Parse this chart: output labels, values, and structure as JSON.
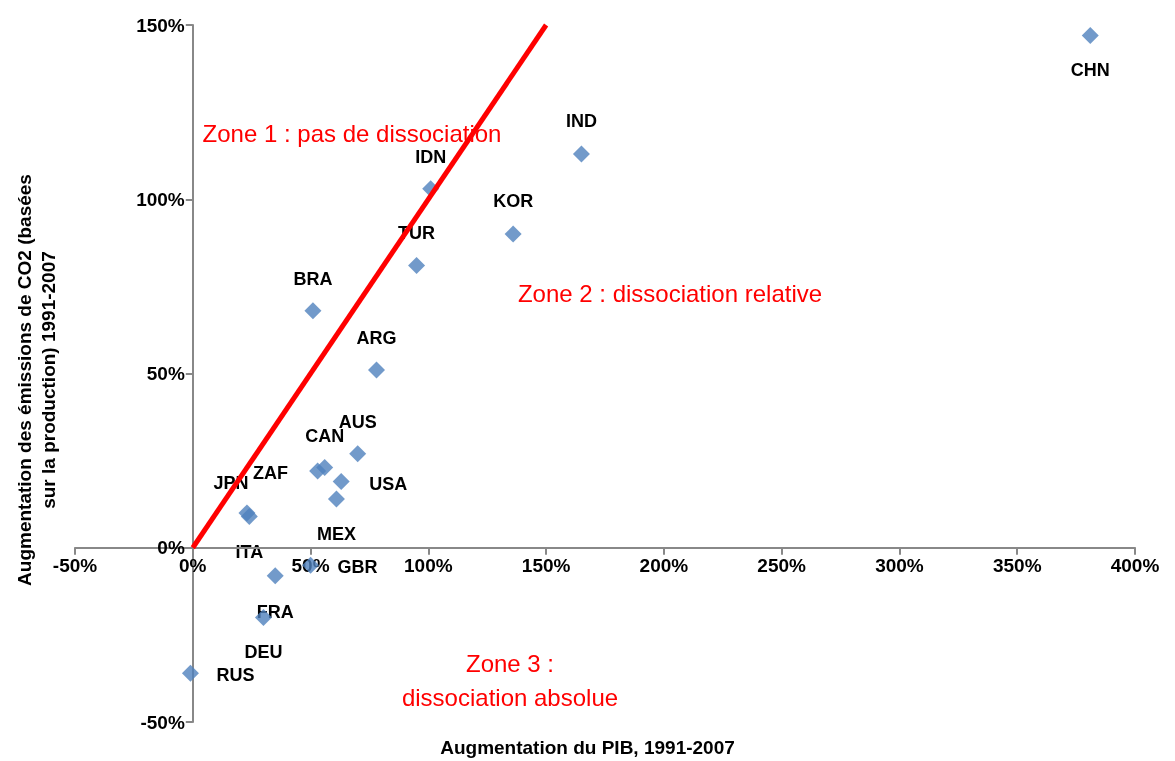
{
  "chart_data": {
    "type": "scatter",
    "xlabel": "Augmentation du PIB, 1991-2007",
    "ylabel": "Augmentation des émissions de CO2 (basées\nsur la production) 1991-2007",
    "series": [
      {
        "color": "#4f81bd",
        "marker": "diamond",
        "x": [
          381,
          165,
          101,
          136,
          95,
          51,
          78,
          70,
          56,
          53,
          63,
          61,
          23,
          24,
          50,
          35,
          30,
          -1
        ],
        "values": [
          147,
          113,
          103,
          90,
          81,
          68,
          51,
          27,
          23,
          22,
          19,
          14,
          10,
          9,
          -5,
          -8,
          -20,
          -36
        ]
      },
      {
        "type": "line",
        "color": "#ff0000",
        "marker": "none",
        "x": [
          0,
          150
        ],
        "values": [
          0,
          150
        ]
      }
    ],
    "annotations": [
      {
        "text": "CHN",
        "x": 381,
        "y": 147
      },
      {
        "text": "IND",
        "x": 165,
        "y": 113
      },
      {
        "text": "IDN",
        "x": 101,
        "y": 103
      },
      {
        "text": "KOR",
        "x": 136,
        "y": 90
      },
      {
        "text": "TUR",
        "x": 95,
        "y": 81
      },
      {
        "text": "BRA",
        "x": 51,
        "y": 68
      },
      {
        "text": "ARG",
        "x": 78,
        "y": 51
      },
      {
        "text": "AUS",
        "x": 70,
        "y": 27
      },
      {
        "text": "CAN",
        "x": 56,
        "y": 23
      },
      {
        "text": "ZAF",
        "x": 53,
        "y": 22
      },
      {
        "text": "USA",
        "x": 63,
        "y": 19
      },
      {
        "text": "MEX",
        "x": 61,
        "y": 14
      },
      {
        "text": "JPN",
        "x": 23,
        "y": 10
      },
      {
        "text": "ITA",
        "x": 24,
        "y": 9
      },
      {
        "text": "GBR",
        "x": 50,
        "y": -5
      },
      {
        "text": "FRA",
        "x": 35,
        "y": -8
      },
      {
        "text": "DEU",
        "x": 30,
        "y": -20
      },
      {
        "text": "RUS",
        "x": -1,
        "y": -36
      },
      "Zone 1 : pas de dissociation",
      "Zone 2 : dissociation relative",
      "Zone 3 :\ndissociation absolue"
    ],
    "xlim": [
      -50,
      400
    ],
    "xticks": [
      {
        "value": -50,
        "label": "-50%"
      },
      {
        "value": 0,
        "label": "0%"
      },
      {
        "value": 50,
        "label": "50%"
      },
      {
        "value": 100,
        "label": "100%"
      },
      {
        "value": 150,
        "label": "150%"
      },
      {
        "value": 200,
        "label": "200%"
      },
      {
        "value": 250,
        "label": "250%"
      },
      {
        "value": 300,
        "label": "300%"
      },
      {
        "value": 350,
        "label": "350%"
      },
      {
        "value": 400,
        "label": "400%"
      }
    ],
    "ylim": [
      -50,
      150
    ],
    "yticks": [
      {
        "value": -50,
        "label": "-50%"
      },
      {
        "value": 0,
        "label": "0%"
      },
      {
        "value": 50,
        "label": "50%"
      },
      {
        "value": 100,
        "label": "100%"
      },
      {
        "value": 150,
        "label": "150%"
      }
    ]
  }
}
